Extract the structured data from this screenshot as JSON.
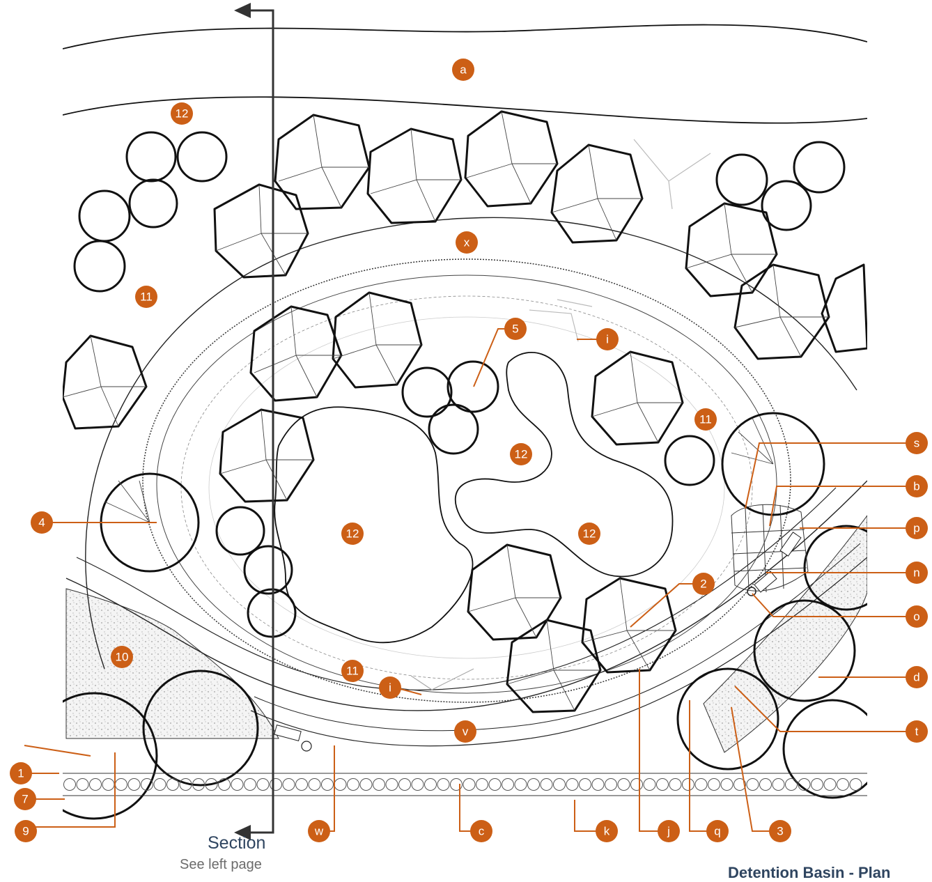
{
  "section": {
    "title": "Section",
    "note": "See left page"
  },
  "sheet_title": "Detention Basin - Plan",
  "accent_color": "#cc5f16",
  "callouts": {
    "a": "a",
    "x": "x",
    "i": "i",
    "s": "s",
    "b": "b",
    "p": "p",
    "n": "n",
    "o": "o",
    "d": "d",
    "t": "t",
    "v": "v",
    "c": "c",
    "k": "k",
    "j": "j",
    "q": "q",
    "w": "w",
    "n1": "1",
    "n2": "2",
    "n3": "3",
    "n4": "4",
    "n5": "5",
    "n7": "7",
    "n9": "9",
    "n10": "10",
    "n11": "11",
    "n12": "12"
  }
}
